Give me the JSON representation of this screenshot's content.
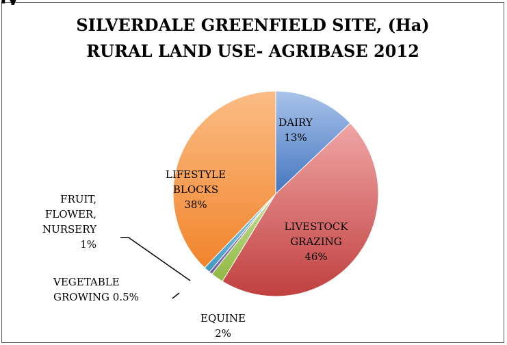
{
  "header_fragment": "ly",
  "chart_data": {
    "type": "pie",
    "title_lines": [
      "SILVERDALE GREENFIELD SITE, (Ha)",
      "RURAL LAND USE- AGRIBASE 2012"
    ],
    "slices": [
      {
        "name": "DAIRY",
        "value": 13,
        "label_lines": [
          "DAIRY",
          "13%"
        ],
        "color_light": "#a9c3ea",
        "color_dark": "#4476c0",
        "label_color": "#000000"
      },
      {
        "name": "LIVESTOCK GRAZING",
        "value": 46,
        "label_lines": [
          "LIVESTOCK",
          "GRAZING",
          "46%"
        ],
        "color_light": "#f0a6a6",
        "color_dark": "#c0403f",
        "label_color": "#000000"
      },
      {
        "name": "EQUINE",
        "value": 2,
        "label_lines": [
          "EQUINE",
          "2%"
        ],
        "color_light": "#c8df97",
        "color_dark": "#8fb843",
        "label_color": "#000000"
      },
      {
        "name": "VEGETABLE GROWING",
        "value": 0.5,
        "label_lines": [
          "VEGETABLE",
          "GROWING 0.5%"
        ],
        "color_light": "#b9a6d6",
        "color_dark": "#7256a6",
        "label_color": "#000000"
      },
      {
        "name": "FRUIT, FLOWER, NURSERY",
        "value": 1,
        "label_lines": [
          "FRUIT,",
          "FLOWER,",
          "NURSERY",
          "1%"
        ],
        "color_light": "#9fd4e6",
        "color_dark": "#3b98c2",
        "label_color": "#000000"
      },
      {
        "name": "LIFESTYLE BLOCKS",
        "value": 38,
        "label_lines": [
          "LIFESTYLE",
          "BLOCKS",
          "38%"
        ],
        "color_light": "#fbbd85",
        "color_dark": "#f1842c",
        "label_color": "#000000"
      }
    ],
    "legend": "none"
  }
}
